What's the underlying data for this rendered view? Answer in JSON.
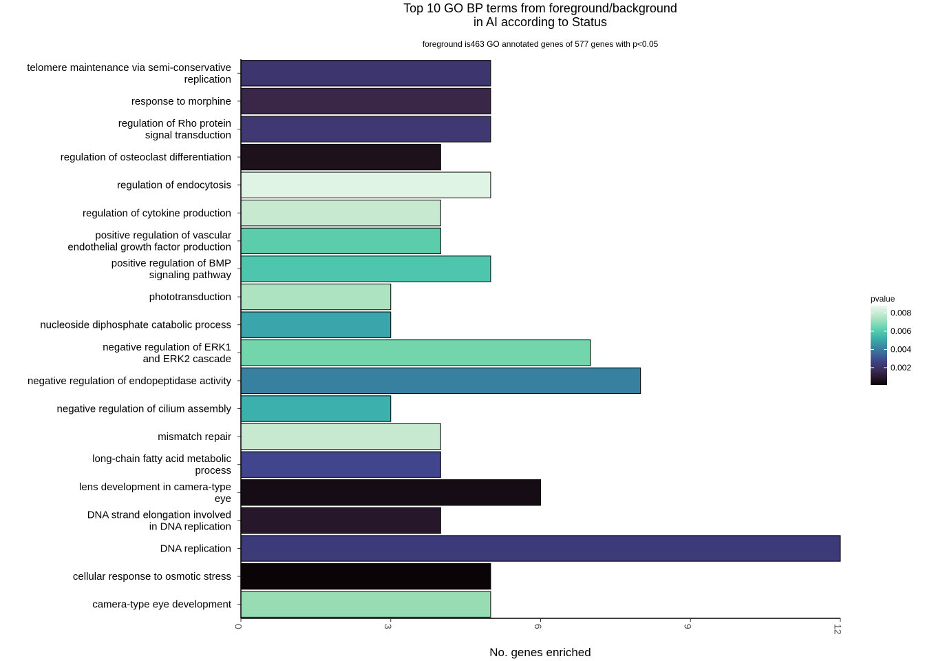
{
  "chart_data": {
    "type": "bar",
    "orientation": "horizontal",
    "title_lines": [
      "Top 10 GO BP terms from foreground/background",
      "in AI according to Status"
    ],
    "subtitle": "foreground is463 GO annotated genes of 577 genes with p<0.05",
    "xlabel": "No. genes enriched",
    "ylabel": "",
    "xlim": [
      0,
      12
    ],
    "x_ticks": [
      0,
      3,
      6,
      9,
      12
    ],
    "grid": false,
    "legend": {
      "title": "pvalue",
      "position": "right",
      "ticks": [
        {
          "label": "0.002",
          "value": 0.002
        },
        {
          "label": "0.004",
          "value": 0.004
        },
        {
          "label": "0.006",
          "value": 0.006
        },
        {
          "label": "0.008",
          "value": 0.008
        }
      ],
      "range": [
        0.0001,
        0.0088
      ],
      "palette": [
        "#0a0408",
        "#2a1830",
        "#3b2f5e",
        "#3f4388",
        "#3b6a9a",
        "#3a8fa3",
        "#3eb3ab",
        "#5ccfae",
        "#94dfbc",
        "#c6ead2",
        "#e9f8ee"
      ]
    },
    "bars": [
      {
        "label_lines": [
          "telomere maintenance via semi-conservative",
          "replication"
        ],
        "value": 5,
        "pvalue": 0.0027,
        "color": "#3d356d"
      },
      {
        "label_lines": [
          "response to morphine"
        ],
        "value": 5,
        "pvalue": 0.0019,
        "color": "#3a2747"
      },
      {
        "label_lines": [
          "regulation of Rho protein",
          "signal transduction"
        ],
        "value": 5,
        "pvalue": 0.0028,
        "color": "#3f3873"
      },
      {
        "label_lines": [
          "regulation of osteoclast differentiation"
        ],
        "value": 4,
        "pvalue": 0.001,
        "color": "#1d121c"
      },
      {
        "label_lines": [
          "regulation of endocytosis"
        ],
        "value": 5,
        "pvalue": 0.0087,
        "color": "#dff4e4"
      },
      {
        "label_lines": [
          "regulation of cytokine production"
        ],
        "value": 4,
        "pvalue": 0.008,
        "color": "#c6e9d0"
      },
      {
        "label_lines": [
          "positive regulation of vascular",
          "endothelial growth factor production"
        ],
        "value": 4,
        "pvalue": 0.0066,
        "color": "#5ccdab"
      },
      {
        "label_lines": [
          "positive regulation of BMP",
          "signaling pathway"
        ],
        "value": 5,
        "pvalue": 0.0064,
        "color": "#4ec6ae"
      },
      {
        "label_lines": [
          "phototransduction"
        ],
        "value": 3,
        "pvalue": 0.0077,
        "color": "#ade3c0"
      },
      {
        "label_lines": [
          "nucleoside diphosphate catabolic process"
        ],
        "value": 3,
        "pvalue": 0.0055,
        "color": "#3aa6ab"
      },
      {
        "label_lines": [
          "negative regulation of ERK1",
          "and ERK2 cascade"
        ],
        "value": 7,
        "pvalue": 0.0069,
        "color": "#73d5ab"
      },
      {
        "label_lines": [
          "negative regulation of endopeptidase activity"
        ],
        "value": 8,
        "pvalue": 0.0046,
        "color": "#3880a0"
      },
      {
        "label_lines": [
          "negative regulation of cilium assembly"
        ],
        "value": 3,
        "pvalue": 0.0058,
        "color": "#3cb0ad"
      },
      {
        "label_lines": [
          "mismatch repair"
        ],
        "value": 4,
        "pvalue": 0.008,
        "color": "#c6e9d0"
      },
      {
        "label_lines": [
          "long-chain fatty acid metabolic",
          "process"
        ],
        "value": 4,
        "pvalue": 0.0032,
        "color": "#40458d"
      },
      {
        "label_lines": [
          "lens development in camera-type",
          "eye"
        ],
        "value": 6,
        "pvalue": 0.0005,
        "color": "#160c16"
      },
      {
        "label_lines": [
          "DNA strand elongation involved",
          "in DNA replication"
        ],
        "value": 4,
        "pvalue": 0.0012,
        "color": "#26172a"
      },
      {
        "label_lines": [
          "DNA replication"
        ],
        "value": 12,
        "pvalue": 0.0029,
        "color": "#3c3a78"
      },
      {
        "label_lines": [
          "cellular response to osmotic stress"
        ],
        "value": 5,
        "pvalue": 0.0001,
        "color": "#0a0406"
      },
      {
        "label_lines": [
          "camera-type eye development"
        ],
        "value": 5,
        "pvalue": 0.0074,
        "color": "#98dcb4"
      }
    ]
  }
}
